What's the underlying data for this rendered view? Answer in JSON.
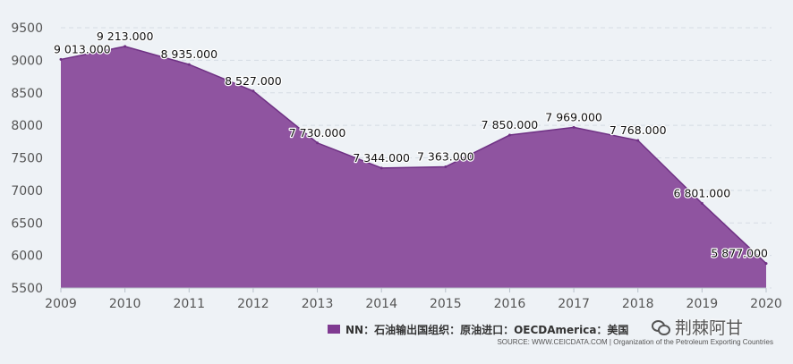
{
  "chart_data": {
    "type": "area",
    "x": [
      "2009",
      "2010",
      "2011",
      "2012",
      "2013",
      "2014",
      "2015",
      "2016",
      "2017",
      "2018",
      "2019",
      "2020"
    ],
    "values": [
      9013,
      9213,
      8935,
      8527,
      7730,
      7344,
      7363,
      7850,
      7969,
      7768,
      6801,
      5877
    ],
    "data_labels": [
      "9 013.000",
      "9 213.000",
      "8 935.000",
      "8 527.000",
      "7 730.000",
      "7 344.000",
      "7 363.000",
      "7 850.000",
      "7 969.000",
      "7 768.000",
      "6 801.000",
      "5 877.000"
    ],
    "ylim": [
      5500,
      9500
    ],
    "yticks": [
      5500,
      6000,
      6500,
      7000,
      7500,
      8000,
      8500,
      9000,
      9500
    ],
    "grid": true,
    "series": [
      {
        "name": "NN：石油输出国组织：原油进口：OECDAmerica：美国",
        "color": "#8f54a0"
      }
    ],
    "legend_position": "bottom-right"
  },
  "legend": {
    "label": "NN：石油输出国组织：原油进口：OECDAmerica：美国",
    "swatch_color": "#7f3a91"
  },
  "source": "SOURCE: WWW.CEICDATA.COM | Organization of the Petroleum Exporting Countries",
  "watermark": {
    "text": "荆棘阿甘",
    "icon": "wechat-icon"
  },
  "colors": {
    "area_fill": "#8f54a0",
    "area_line": "#6f3184",
    "grid": "#d5dce4",
    "axis_text": "#555555"
  }
}
